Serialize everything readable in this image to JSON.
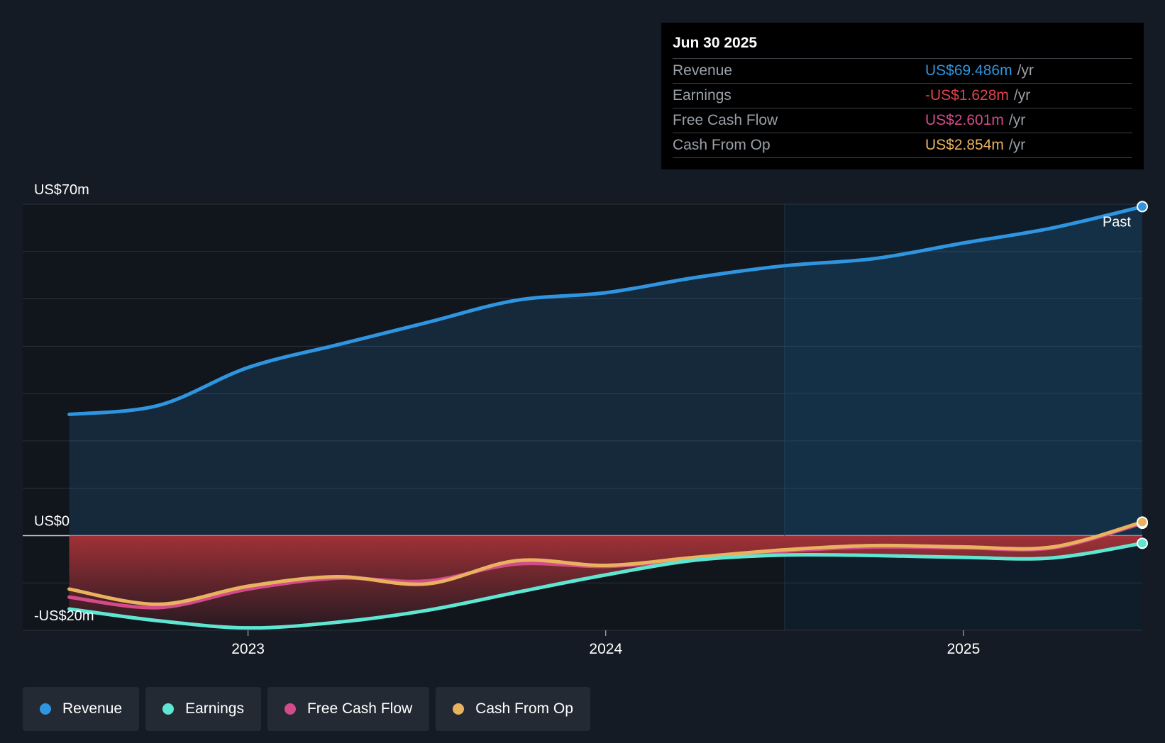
{
  "colors": {
    "revenue": "#2f95e0",
    "earnings": "#5ee6d2",
    "fcf": "#d44b8b",
    "cfo": "#e9b25f",
    "negative": "#e0434f",
    "background": "#151b24"
  },
  "tooltip": {
    "date": "Jun 30 2025",
    "rows": [
      {
        "label": "Revenue",
        "value": "US$69.486m",
        "unit": "/yr",
        "color": "#2f95e0"
      },
      {
        "label": "Earnings",
        "value": "-US$1.628m",
        "unit": "/yr",
        "color": "#e0434f"
      },
      {
        "label": "Free Cash Flow",
        "value": "US$2.601m",
        "unit": "/yr",
        "color": "#d44b8b"
      },
      {
        "label": "Cash From Op",
        "value": "US$2.854m",
        "unit": "/yr",
        "color": "#e9b25f"
      }
    ]
  },
  "legend": [
    {
      "label": "Revenue",
      "color": "#2f95e0"
    },
    {
      "label": "Earnings",
      "color": "#5ee6d2"
    },
    {
      "label": "Free Cash Flow",
      "color": "#d44b8b"
    },
    {
      "label": "Cash From Op",
      "color": "#e9b25f"
    }
  ],
  "chart_data": {
    "type": "area",
    "y_tick_labels": [
      "US$70m",
      "US$0",
      "-US$20m"
    ],
    "x_tick_labels": [
      "2023",
      "2024",
      "2025"
    ],
    "x_ticks": [
      2023.0,
      2024.0,
      2025.0
    ],
    "past_label": "Past",
    "ylim": [
      -20,
      70
    ],
    "xlim": [
      2022.37,
      2025.5
    ],
    "grid": true,
    "series": [
      {
        "name": "Revenue",
        "color": "#2f95e0",
        "x": [
          2022.5,
          2022.75,
          2023.0,
          2023.25,
          2023.5,
          2023.75,
          2024.0,
          2024.25,
          2024.5,
          2024.75,
          2025.0,
          2025.25,
          2025.5
        ],
        "y": [
          25.6,
          27.5,
          35.5,
          40.3,
          45.0,
          49.7,
          51.3,
          54.5,
          57.0,
          58.5,
          61.8,
          65.0,
          69.486
        ]
      },
      {
        "name": "Earnings",
        "color": "#5ee6d2",
        "x": [
          2022.5,
          2022.75,
          2023.0,
          2023.25,
          2023.5,
          2023.75,
          2024.0,
          2024.25,
          2024.5,
          2024.75,
          2025.0,
          2025.25,
          2025.5
        ],
        "y": [
          -15.5,
          -18.0,
          -19.5,
          -18.3,
          -15.8,
          -12.0,
          -8.3,
          -5.2,
          -4.1,
          -4.2,
          -4.6,
          -4.7,
          -1.628
        ]
      },
      {
        "name": "Free Cash Flow",
        "color": "#d44b8b",
        "x": [
          2022.5,
          2022.75,
          2023.0,
          2023.25,
          2023.5,
          2023.75,
          2024.0,
          2024.25,
          2024.5,
          2024.75,
          2025.0,
          2025.25,
          2025.5
        ],
        "y": [
          -13.0,
          -15.2,
          -11.3,
          -9.0,
          -9.6,
          -6.0,
          -6.5,
          -5.0,
          -3.3,
          -2.4,
          -2.6,
          -2.6,
          2.601
        ]
      },
      {
        "name": "Cash From Op",
        "color": "#e9b25f",
        "x": [
          2022.5,
          2022.75,
          2023.0,
          2023.25,
          2023.5,
          2023.75,
          2024.0,
          2024.25,
          2024.5,
          2024.75,
          2025.0,
          2025.25,
          2025.5
        ],
        "y": [
          -11.3,
          -14.5,
          -10.7,
          -8.7,
          -10.2,
          -5.3,
          -6.3,
          -4.6,
          -3.0,
          -2.1,
          -2.4,
          -2.4,
          2.854
        ]
      }
    ]
  }
}
